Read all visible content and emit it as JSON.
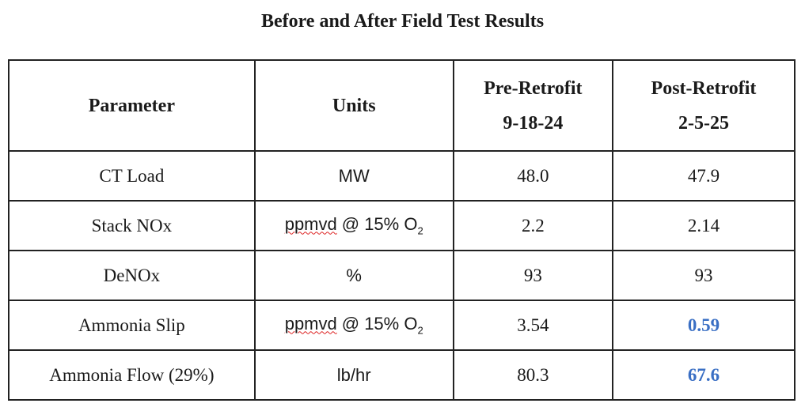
{
  "title": "Before and After Field Test Results",
  "table": {
    "header": [
      {
        "line1": "Parameter"
      },
      {
        "line1": "Units"
      },
      {
        "line1": "Pre-Retrofit",
        "line2": "9-18-24"
      },
      {
        "line1": "Post-Retrofit",
        "line2": "2-5-25"
      }
    ],
    "rows": [
      {
        "parameter": "CT Load",
        "units": {
          "text": "MW"
        },
        "pre": "48.0",
        "post": "47.9"
      },
      {
        "parameter": "Stack NOx",
        "units": {
          "word": "ppmvd",
          "text": "@ 15% O",
          "sub": "2"
        },
        "pre": "2.2",
        "post": "2.14"
      },
      {
        "parameter": "DeNOx",
        "units": {
          "text": "%"
        },
        "pre": "93",
        "post": "93"
      },
      {
        "parameter": "Ammonia Slip",
        "units": {
          "word": "ppmvd",
          "text": "@ 15% O",
          "sub": "2"
        },
        "pre": "3.54",
        "post": "0.59",
        "post_highlight": true
      },
      {
        "parameter": "Ammonia Flow (29%)",
        "units": {
          "text": "lb/hr"
        },
        "pre": "80.3",
        "post": "67.6",
        "post_highlight": true
      }
    ]
  }
}
